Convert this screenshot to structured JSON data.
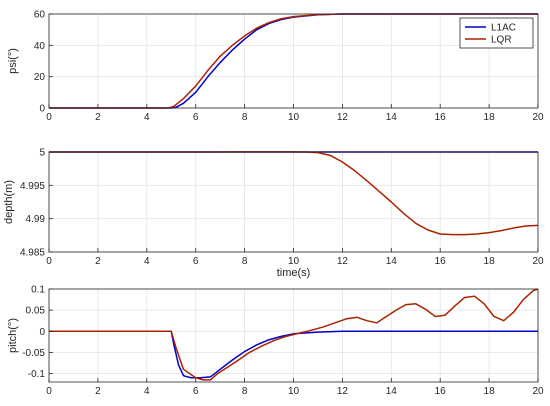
{
  "chart_data": [
    {
      "type": "line",
      "ylabel": "psi(°)",
      "xlabel": "",
      "xlim": [
        0,
        20
      ],
      "ylim": [
        0,
        60
      ],
      "xticks": [
        0,
        2,
        4,
        6,
        8,
        10,
        12,
        14,
        16,
        18,
        20
      ],
      "yticks": [
        0,
        20,
        40,
        60
      ],
      "ytick_labels": [
        "0",
        "20",
        "40",
        "60"
      ],
      "grid": true,
      "legend": "top-right",
      "series": [
        {
          "name": "L1AC",
          "color": "#0000cc",
          "x": [
            0,
            5.0,
            5.2,
            5.5,
            6.0,
            6.5,
            7.0,
            7.5,
            8.0,
            8.5,
            9.0,
            9.5,
            10.0,
            11.0,
            12.0,
            14.0,
            16.0,
            18.0,
            20.0
          ],
          "y": [
            0,
            0,
            0.5,
            3,
            10,
            20,
            29,
            37,
            44,
            50,
            54,
            56.5,
            58,
            59.5,
            60,
            60,
            60,
            60,
            60
          ]
        },
        {
          "name": "LQR",
          "color": "#aa2200",
          "x": [
            0,
            4.9,
            5.1,
            5.5,
            6.0,
            6.5,
            7.0,
            7.5,
            8.0,
            8.5,
            9.0,
            9.5,
            10.0,
            11.0,
            12.0,
            14.0,
            16.0,
            18.0,
            20.0
          ],
          "y": [
            0,
            0,
            1,
            6,
            14,
            24,
            33,
            40,
            46,
            51,
            54.5,
            57,
            58.3,
            59.6,
            60,
            60,
            60,
            60,
            60
          ]
        }
      ]
    },
    {
      "type": "line",
      "ylabel": "depth(m)",
      "xlabel": "time(s)",
      "xlim": [
        0,
        20
      ],
      "ylim": [
        4.985,
        5.0
      ],
      "xticks": [
        0,
        2,
        4,
        6,
        8,
        10,
        12,
        14,
        16,
        18,
        20
      ],
      "yticks": [
        4.985,
        4.99,
        4.995,
        5.0
      ],
      "ytick_labels": [
        "4.985",
        "4.99",
        "4.995",
        "5"
      ],
      "grid": true,
      "series": [
        {
          "name": "L1AC",
          "color": "#0000cc",
          "x": [
            0,
            5,
            10,
            15,
            20
          ],
          "y": [
            5.0,
            5.0,
            5.0,
            5.0,
            5.0
          ]
        },
        {
          "name": "LQR",
          "color": "#aa2200",
          "x": [
            0,
            6,
            8,
            10,
            10.5,
            11,
            11.5,
            12,
            12.5,
            13,
            13.5,
            14,
            14.5,
            15,
            15.5,
            16,
            16.5,
            17,
            17.5,
            18,
            18.5,
            19,
            19.5,
            20
          ],
          "y": [
            5.0,
            5.0,
            5.00002,
            5.00001,
            5.0,
            4.9999,
            4.9995,
            4.9985,
            4.9972,
            4.9957,
            4.9941,
            4.9925,
            4.9908,
            4.9893,
            4.9883,
            4.9877,
            4.9876,
            4.9876,
            4.9877,
            4.9879,
            4.9882,
            4.9886,
            4.9889,
            4.989
          ]
        }
      ]
    },
    {
      "type": "line",
      "ylabel": "pitch(°)",
      "xlabel": "",
      "xlim": [
        0,
        20
      ],
      "ylim": [
        -0.12,
        0.1
      ],
      "xticks": [
        0,
        2,
        4,
        6,
        8,
        10,
        12,
        14,
        16,
        18,
        20
      ],
      "yticks": [
        -0.1,
        -0.05,
        0,
        0.05,
        0.1
      ],
      "ytick_labels": [
        "-0.1",
        "-0.05",
        "0",
        "0.05",
        "0.1"
      ],
      "grid": true,
      "series": [
        {
          "name": "L1AC",
          "color": "#0000cc",
          "x": [
            0,
            5.0,
            5.1,
            5.3,
            5.5,
            5.8,
            6.2,
            6.6,
            7.0,
            7.5,
            8.0,
            8.5,
            9.0,
            9.5,
            10.0,
            11.0,
            12.0,
            13.0,
            14.0,
            16.0,
            18.0,
            20.0
          ],
          "y": [
            0,
            0,
            -0.03,
            -0.08,
            -0.105,
            -0.11,
            -0.11,
            -0.108,
            -0.09,
            -0.068,
            -0.048,
            -0.032,
            -0.02,
            -0.012,
            -0.006,
            -0.002,
            0,
            0,
            0,
            0,
            0,
            0
          ]
        },
        {
          "name": "LQR",
          "color": "#aa2200",
          "x": [
            0,
            5.0,
            5.2,
            5.5,
            6.0,
            6.3,
            6.6,
            6.9,
            7.3,
            7.7,
            8.2,
            8.7,
            9.2,
            9.7,
            10.2,
            10.7,
            11.2,
            11.7,
            12.2,
            12.6,
            13.0,
            13.4,
            13.8,
            14.2,
            14.6,
            15.0,
            15.4,
            15.8,
            16.2,
            16.6,
            17.0,
            17.4,
            17.8,
            18.2,
            18.6,
            19.0,
            19.4,
            19.8,
            20.0
          ],
          "y": [
            0,
            0,
            -0.04,
            -0.09,
            -0.11,
            -0.115,
            -0.115,
            -0.1,
            -0.085,
            -0.07,
            -0.05,
            -0.035,
            -0.022,
            -0.012,
            -0.005,
            0.002,
            0.01,
            0.02,
            0.03,
            0.033,
            0.025,
            0.02,
            0.035,
            0.05,
            0.063,
            0.065,
            0.052,
            0.035,
            0.038,
            0.06,
            0.08,
            0.083,
            0.065,
            0.035,
            0.025,
            0.045,
            0.075,
            0.096,
            0.1
          ]
        }
      ]
    }
  ]
}
